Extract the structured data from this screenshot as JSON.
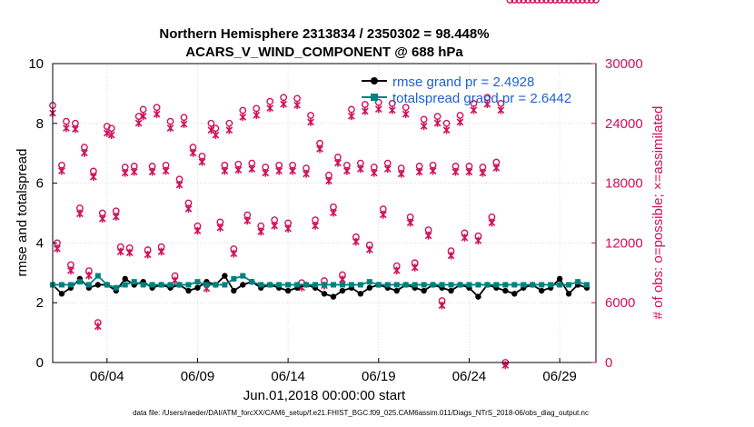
{
  "chart_data": {
    "type": "line",
    "title": "Northern Hemisphere 2313834 / 2350302 = 98.448%",
    "subtitle": "ACARS_V_WIND_COMPONENT @ 688 hPa",
    "xlabel": "Jun.01,2018 00:00:00 start",
    "ylabel_left": "rmse and totalspread",
    "ylabel_right": "# of obs: o=possible; ×=assimilated",
    "x_ticks": [
      "06/04",
      "06/09",
      "06/14",
      "06/19",
      "06/24",
      "06/29"
    ],
    "x_tick_days": [
      4,
      9,
      14,
      19,
      24,
      29
    ],
    "xlim": [
      1,
      31
    ],
    "ylim_left": [
      0,
      10
    ],
    "y_ticks_left": [
      "0",
      "2",
      "4",
      "6",
      "8",
      "10"
    ],
    "ylim_right": [
      0,
      30000
    ],
    "y_ticks_right": [
      "0",
      "6000",
      "12000",
      "18000",
      "24000",
      "30000"
    ],
    "grid": true,
    "legend_position": "top-right",
    "colors": {
      "rmse": "#000000",
      "spread": "#008080",
      "obs": "#d0105a"
    },
    "series": [
      {
        "name": "rmse grand pr = 2.4928",
        "axis": "left",
        "day": [
          1.0,
          1.5,
          2.0,
          2.5,
          3.0,
          3.5,
          4.0,
          4.5,
          5.0,
          5.5,
          6.0,
          6.5,
          7.0,
          7.5,
          8.0,
          8.5,
          9.0,
          9.5,
          10.0,
          10.5,
          11.0,
          11.5,
          12.0,
          12.5,
          13.0,
          13.5,
          14.0,
          14.5,
          15.0,
          15.5,
          16.0,
          16.5,
          17.0,
          17.5,
          18.0,
          18.5,
          19.0,
          19.5,
          20.0,
          20.5,
          21.0,
          21.5,
          22.0,
          22.5,
          23.0,
          23.5,
          24.0,
          24.5,
          25.0,
          25.5,
          26.0,
          26.5,
          27.0,
          27.5,
          28.0,
          28.5,
          29.0,
          29.5,
          30.0,
          30.5
        ],
        "values": [
          2.6,
          2.3,
          2.5,
          2.8,
          2.5,
          2.6,
          2.6,
          2.4,
          2.8,
          2.6,
          2.7,
          2.5,
          2.6,
          2.5,
          2.6,
          2.4,
          2.5,
          2.7,
          2.6,
          2.9,
          2.4,
          2.6,
          2.7,
          2.5,
          2.6,
          2.5,
          2.4,
          2.5,
          2.6,
          2.5,
          2.3,
          2.2,
          2.4,
          2.5,
          2.3,
          2.5,
          2.6,
          2.5,
          2.4,
          2.6,
          2.5,
          2.4,
          2.6,
          2.5,
          2.4,
          2.6,
          2.5,
          2.2,
          2.6,
          2.5,
          2.4,
          2.3,
          2.5,
          2.6,
          2.4,
          2.5,
          2.8,
          2.3,
          2.6,
          2.5
        ]
      },
      {
        "name": "totalspread grand pr = 2.6442",
        "axis": "left",
        "day": [
          1.0,
          1.5,
          2.0,
          2.5,
          3.0,
          3.5,
          4.0,
          4.5,
          5.0,
          5.5,
          6.0,
          6.5,
          7.0,
          7.5,
          8.0,
          8.5,
          9.0,
          9.5,
          10.0,
          10.5,
          11.0,
          11.5,
          12.0,
          12.5,
          13.0,
          13.5,
          14.0,
          14.5,
          15.0,
          15.5,
          16.0,
          16.5,
          17.0,
          17.5,
          18.0,
          18.5,
          19.0,
          19.5,
          20.0,
          20.5,
          21.0,
          21.5,
          22.0,
          22.5,
          23.0,
          23.5,
          24.0,
          24.5,
          25.0,
          25.5,
          26.0,
          26.5,
          27.0,
          27.5,
          28.0,
          28.5,
          29.0,
          29.5,
          30.0,
          30.5
        ],
        "values": [
          2.6,
          2.6,
          2.6,
          2.7,
          2.6,
          2.9,
          2.6,
          2.5,
          2.6,
          2.7,
          2.6,
          2.6,
          2.6,
          2.6,
          2.6,
          2.6,
          2.7,
          2.6,
          2.6,
          2.6,
          2.8,
          2.9,
          2.7,
          2.6,
          2.6,
          2.6,
          2.6,
          2.6,
          2.6,
          2.6,
          2.6,
          2.6,
          2.6,
          2.6,
          2.6,
          2.7,
          2.6,
          2.6,
          2.6,
          2.6,
          2.6,
          2.6,
          2.6,
          2.6,
          2.6,
          2.6,
          2.6,
          2.6,
          2.6,
          2.6,
          2.6,
          2.6,
          2.6,
          2.6,
          2.6,
          2.6,
          2.6,
          2.6,
          2.7,
          2.6
        ]
      },
      {
        "name": "possible",
        "axis": "right",
        "day": [
          1.0,
          1.25,
          1.5,
          1.75,
          2.0,
          2.25,
          2.5,
          2.75,
          3.0,
          3.25,
          3.5,
          3.75,
          4.0,
          4.25,
          4.5,
          4.75,
          5.0,
          5.25,
          5.5,
          5.75,
          6.0,
          6.25,
          6.5,
          6.75,
          7.0,
          7.25,
          7.5,
          7.75,
          8.0,
          8.25,
          8.5,
          8.75,
          9.0,
          9.25,
          9.5,
          9.75,
          10.0,
          10.25,
          10.5,
          10.75,
          11.0,
          11.25,
          11.5,
          11.75,
          12.0,
          12.25,
          12.5,
          12.75,
          13.0,
          13.25,
          13.5,
          13.75,
          14.0,
          14.25,
          14.5,
          14.75,
          15.0,
          15.25,
          15.5,
          15.75,
          16.0,
          16.25,
          16.5,
          16.75,
          17.0,
          17.25,
          17.5,
          17.75,
          18.0,
          18.25,
          18.5,
          18.75,
          19.0,
          19.25,
          19.5,
          19.75,
          20.0,
          20.25,
          20.5,
          20.75,
          21.0,
          21.25,
          21.5,
          21.75,
          22.0,
          22.25,
          22.5,
          22.75,
          23.0,
          23.25,
          23.5,
          23.75,
          24.0,
          24.25,
          24.5,
          24.75,
          25.0,
          25.25,
          25.5,
          25.75,
          26.0,
          26.25,
          26.5,
          26.75,
          27.0,
          27.25,
          27.5,
          27.75,
          28.0,
          28.25,
          28.5,
          28.75,
          29.0,
          29.25,
          29.5,
          29.75,
          30.0,
          30.25,
          30.5,
          30.75,
          31.0
        ],
        "values": [
          25800,
          12000,
          19800,
          24200,
          9800,
          24000,
          15500,
          21600,
          9200,
          19200,
          4000,
          15000,
          23700,
          23500,
          15200,
          11600,
          19600,
          11500,
          19700,
          24700,
          25400,
          11300,
          19700,
          25600,
          11600,
          19800,
          24200,
          8700,
          18400,
          24600,
          16000,
          21600,
          13700,
          20700,
          7900,
          24000,
          23500,
          14100,
          19800,
          24000,
          11400,
          19900,
          25300,
          14800,
          20000,
          25500,
          13700,
          19600,
          26200,
          14300,
          19800,
          26600,
          14000,
          19800,
          26500,
          8000,
          19500,
          24800,
          14300,
          22000,
          8200,
          18800,
          15600,
          20600,
          8800,
          19800,
          25400,
          12600,
          20000,
          25900,
          11800,
          19600,
          26100,
          15400,
          20000,
          26000,
          9700,
          19500,
          25600,
          14600,
          10000,
          19700,
          24400,
          13300,
          19800,
          24700,
          6200,
          24000,
          11200,
          19700,
          24800,
          13000,
          19700,
          26000,
          12700,
          19600,
          26600,
          14600,
          20100,
          26000,
          0
        ],
        "values_note": "possible counts"
      },
      {
        "name": "assimilated",
        "axis": "right",
        "day": [
          1.0,
          1.25,
          1.5,
          1.75,
          2.0,
          2.25,
          2.5,
          2.75,
          3.0,
          3.25,
          3.5,
          3.75,
          4.0,
          4.25,
          4.5,
          4.75,
          5.0,
          5.25,
          5.5,
          5.75,
          6.0,
          6.25,
          6.5,
          6.75,
          7.0,
          7.25,
          7.5,
          7.75,
          8.0,
          8.25,
          8.5,
          8.75,
          9.0,
          9.25,
          9.5,
          9.75,
          10.0,
          10.25,
          10.5,
          10.75,
          11.0,
          11.25,
          11.5,
          11.75,
          12.0,
          12.25,
          12.5,
          12.75,
          13.0,
          13.25,
          13.5,
          13.75,
          14.0,
          14.25,
          14.5,
          14.75,
          15.0,
          15.25,
          15.5,
          15.75,
          16.0,
          16.25,
          16.5,
          16.75,
          17.0,
          17.25,
          17.5,
          17.75,
          18.0,
          18.25,
          18.5,
          18.75,
          19.0,
          19.25,
          19.5,
          19.75,
          20.0,
          20.25,
          20.5,
          20.75,
          21.0,
          21.25,
          21.5,
          21.75,
          22.0,
          22.25,
          22.5,
          22.75,
          23.0,
          23.25,
          23.5,
          23.75,
          24.0,
          24.25,
          24.5,
          24.75,
          25.0,
          25.25,
          25.5,
          25.75,
          26.0,
          26.25,
          26.5,
          26.75,
          27.0,
          27.25,
          27.5,
          27.75,
          28.0,
          28.25,
          28.5,
          28.75,
          29.0,
          29.25,
          29.5,
          29.75,
          30.0,
          30.25,
          30.5,
          30.75,
          31.0
        ],
        "values": [
          25300,
          11700,
          19500,
          23800,
          9500,
          23700,
          15200,
          21300,
          9000,
          18900,
          3900,
          14700,
          23300,
          23100,
          14900,
          11400,
          19300,
          11300,
          19400,
          24300,
          25000,
          11100,
          19400,
          25200,
          11400,
          19500,
          23800,
          8500,
          18100,
          24200,
          15700,
          21300,
          13500,
          20400,
          7700,
          23600,
          23100,
          13800,
          19500,
          23600,
          11200,
          19600,
          24900,
          14500,
          19700,
          25100,
          13400,
          19300,
          25800,
          14000,
          19500,
          26200,
          13700,
          19500,
          26100,
          7800,
          19200,
          24400,
          14000,
          21700,
          8000,
          18500,
          15300,
          20300,
          8600,
          19500,
          25000,
          12400,
          19700,
          25500,
          11600,
          19300,
          25700,
          15100,
          19700,
          25600,
          9500,
          19200,
          25200,
          14300,
          9800,
          19400,
          24000,
          13000,
          19500,
          24300,
          6000,
          23600,
          11000,
          19400,
          24400,
          12800,
          19400,
          25600,
          12500,
          19300,
          26200,
          14300,
          19800,
          25600,
          0
        ]
      }
    ]
  },
  "footer": "data file: /Users/raeder/DAI/ATM_forcXX/CAM6_setup/f.e21.FHIST_BGC.f09_025.CAM6assim.011/Diags_NTrS_2018-06/obs_diag_output.nc"
}
